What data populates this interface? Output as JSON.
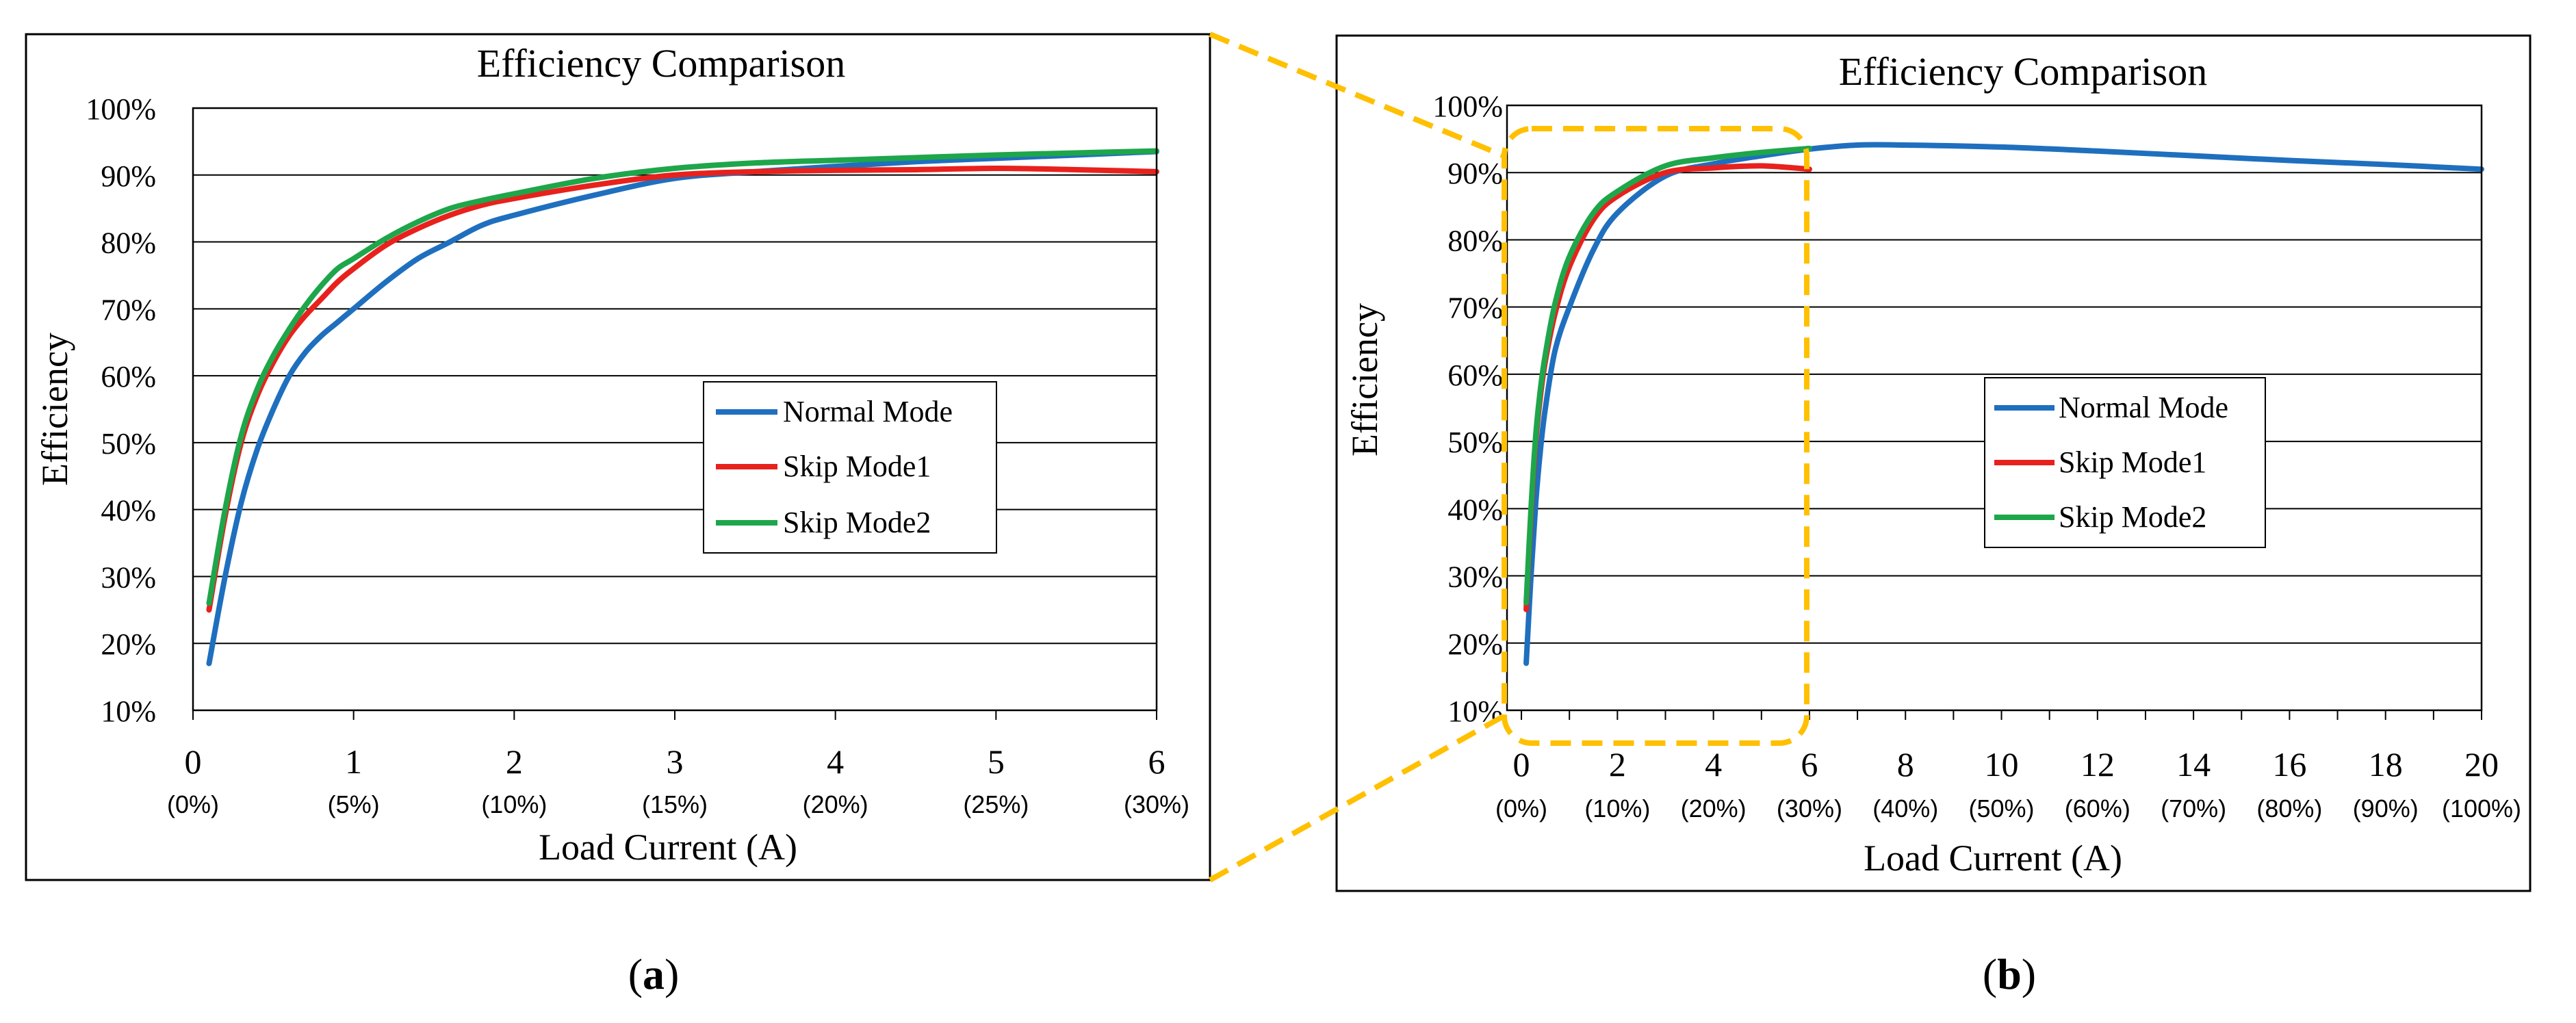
{
  "figure": {
    "label_a": "a",
    "label_b": "b",
    "zoom_color": "#FFC000"
  },
  "chart_data": [
    {
      "id": "a",
      "type": "line",
      "title": "Efficiency Comparison",
      "xlabel": "Load Current (A)",
      "ylabel": "Efficiency",
      "xlim": [
        0,
        6
      ],
      "ylim": [
        10,
        100
      ],
      "yticks": [
        "10%",
        "20%",
        "30%",
        "40%",
        "50%",
        "60%",
        "70%",
        "80%",
        "90%",
        "100%"
      ],
      "xticks": [
        {
          "value": 0,
          "label": "0",
          "sublabel": "(0%)"
        },
        {
          "value": 1,
          "label": "1",
          "sublabel": "(5%)"
        },
        {
          "value": 2,
          "label": "2",
          "sublabel": "(10%)"
        },
        {
          "value": 3,
          "label": "3",
          "sublabel": "(15%)"
        },
        {
          "value": 4,
          "label": "4",
          "sublabel": "(20%)"
        },
        {
          "value": 5,
          "label": "5",
          "sublabel": "(25%)"
        },
        {
          "value": 6,
          "label": "6",
          "sublabel": "(30%)"
        }
      ],
      "grid": true,
      "legend_position": "center-right",
      "series": [
        {
          "name": "Normal Mode",
          "color": "#1F6FBF",
          "x": [
            0.1,
            0.2,
            0.3,
            0.4,
            0.5,
            0.6,
            0.7,
            0.8,
            0.9,
            1.0,
            1.2,
            1.4,
            1.6,
            1.8,
            2.0,
            2.5,
            3.0,
            3.5,
            4.0,
            4.5,
            5.0,
            5.5,
            6.0
          ],
          "y": [
            17,
            30,
            41,
            49,
            55,
            60,
            63.5,
            66,
            68,
            70,
            74,
            77.5,
            80,
            82.5,
            84,
            87,
            89.5,
            90.5,
            91.3,
            92,
            92.5,
            93,
            93.5
          ]
        },
        {
          "name": "Skip Mode1",
          "color": "#E8211D",
          "x": [
            0.1,
            0.2,
            0.3,
            0.4,
            0.5,
            0.6,
            0.7,
            0.8,
            0.9,
            1.0,
            1.2,
            1.4,
            1.6,
            1.8,
            2.0,
            2.5,
            3.0,
            3.5,
            4.0,
            4.5,
            5.0,
            5.5,
            6.0
          ],
          "y": [
            25,
            39,
            50,
            57,
            62,
            66,
            69,
            71.5,
            74,
            76,
            79.5,
            82,
            84,
            85.5,
            86.5,
            88.5,
            90,
            90.5,
            90.7,
            90.8,
            91,
            90.8,
            90.5
          ]
        },
        {
          "name": "Skip Mode2",
          "color": "#1EA64A",
          "x": [
            0.1,
            0.2,
            0.3,
            0.4,
            0.5,
            0.6,
            0.7,
            0.8,
            0.9,
            1.0,
            1.2,
            1.4,
            1.6,
            1.8,
            2.0,
            2.5,
            3.0,
            3.5,
            4.0,
            4.5,
            5.0,
            5.5,
            6.0
          ],
          "y": [
            26,
            40,
            51,
            58,
            63,
            67,
            70.5,
            73.5,
            76,
            77.5,
            80.5,
            83,
            85,
            86.2,
            87.2,
            89.5,
            91,
            91.8,
            92.2,
            92.6,
            93,
            93.3,
            93.6
          ]
        }
      ]
    },
    {
      "id": "b",
      "type": "line",
      "title": "Efficiency Comparison",
      "xlabel": "Load Current (A)",
      "ylabel": "Efficiency",
      "xlim": [
        -0.3,
        20
      ],
      "ylim": [
        10,
        100
      ],
      "yticks": [
        "10%",
        "20%",
        "30%",
        "40%",
        "50%",
        "60%",
        "70%",
        "80%",
        "90%",
        "100%"
      ],
      "xticks": [
        {
          "value": 0,
          "label": "0",
          "sublabel": "(0%)"
        },
        {
          "value": 2,
          "label": "2",
          "sublabel": "(10%)"
        },
        {
          "value": 4,
          "label": "4",
          "sublabel": "(20%)"
        },
        {
          "value": 6,
          "label": "6",
          "sublabel": "(30%)"
        },
        {
          "value": 8,
          "label": "8",
          "sublabel": "(40%)"
        },
        {
          "value": 10,
          "label": "10",
          "sublabel": "(50%)"
        },
        {
          "value": 12,
          "label": "12",
          "sublabel": "(60%)"
        },
        {
          "value": 14,
          "label": "14",
          "sublabel": "(70%)"
        },
        {
          "value": 16,
          "label": "16",
          "sublabel": "(80%)"
        },
        {
          "value": 18,
          "label": "18",
          "sublabel": "(90%)"
        },
        {
          "value": 20,
          "label": "20",
          "sublabel": "(100%)"
        }
      ],
      "grid": true,
      "legend_position": "center-right",
      "zoom_region": {
        "x": [
          -0.3,
          6
        ],
        "y": [
          10,
          100
        ]
      },
      "series": [
        {
          "name": "Normal Mode",
          "color": "#1F6FBF",
          "x": [
            0.1,
            0.2,
            0.3,
            0.4,
            0.5,
            0.7,
            1.0,
            1.5,
            2.0,
            3.0,
            4.0,
            5.0,
            6.0,
            7.0,
            8.0,
            10.0,
            12.0,
            14.0,
            16.0,
            18.0,
            20.0
          ],
          "y": [
            17,
            30,
            41,
            49,
            55,
            63.5,
            70,
            78.5,
            84,
            89.5,
            91.3,
            92.5,
            93.5,
            94.1,
            94.1,
            93.8,
            93.2,
            92.5,
            91.8,
            91.2,
            90.5
          ]
        },
        {
          "name": "Skip Mode1",
          "color": "#E8211D",
          "x": [
            0.1,
            0.2,
            0.3,
            0.4,
            0.5,
            0.7,
            1.0,
            1.5,
            2.0,
            3.0,
            4.0,
            5.0,
            6.0
          ],
          "y": [
            25,
            39,
            50,
            57,
            62,
            69,
            76,
            83,
            86.5,
            90,
            90.7,
            91,
            90.5
          ]
        },
        {
          "name": "Skip Mode2",
          "color": "#1EA64A",
          "x": [
            0.1,
            0.2,
            0.3,
            0.4,
            0.5,
            0.7,
            1.0,
            1.5,
            2.0,
            3.0,
            4.0,
            5.0,
            6.0
          ],
          "y": [
            26,
            40,
            51,
            58,
            63,
            70.5,
            77.5,
            84,
            87.2,
            91,
            92.2,
            93,
            93.6
          ]
        }
      ]
    }
  ]
}
